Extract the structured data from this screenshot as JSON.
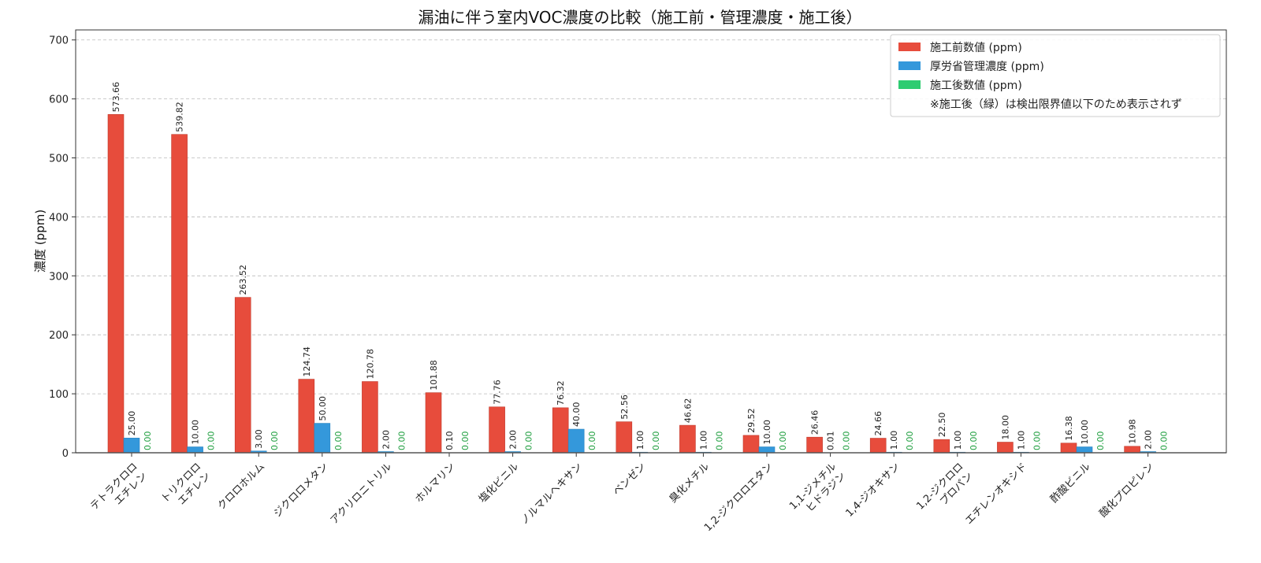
{
  "chart_data": {
    "type": "bar",
    "title": "漏油に伴う室内VOC濃度の比較（施工前・管理濃度・施工後）",
    "xlabel": "",
    "ylabel": "濃度 (ppm)",
    "ylim": [
      0,
      717
    ],
    "yticks": [
      "0",
      "100",
      "200",
      "300",
      "400",
      "500",
      "600",
      "700"
    ],
    "grid": true,
    "legend_position": "top-right",
    "categories": [
      "テトラクロロ\nエチレン",
      "トリクロロ\nエチレン",
      "クロロホルム",
      "ジクロロメタン",
      "アクリロニトリル",
      "ホルマリン",
      "塩化ビニル",
      "ノルマルヘキサン",
      "ベンゼン",
      "臭化メチル",
      "1,2-ジクロロエタン",
      "1,1-ジメチル\nヒドラジン",
      "1,4-ジオキサン",
      "1,2-ジクロロ\nプロパン",
      "エチレンオキシド",
      "酢酸ビニル",
      "酸化プロピレン"
    ],
    "series": [
      {
        "name": "施工前数値 (ppm)",
        "color": "#e74c3c",
        "values": [
          573.66,
          539.82,
          263.52,
          124.74,
          120.78,
          101.88,
          77.76,
          76.32,
          52.56,
          46.62,
          29.52,
          26.46,
          24.66,
          22.5,
          18.0,
          16.38,
          10.98
        ],
        "labels": [
          "573.66",
          "539.82",
          "263.52",
          "124.74",
          "120.78",
          "101.88",
          "77.76",
          "76.32",
          "52.56",
          "46.62",
          "29.52",
          "26.46",
          "24.66",
          "22.50",
          "18.00",
          "16.38",
          "10.98"
        ]
      },
      {
        "name": "厚労省管理濃度 (ppm)",
        "color": "#3498db",
        "values": [
          25,
          10,
          3,
          50,
          2,
          0.1,
          2,
          40,
          1,
          1,
          10,
          0.01,
          1,
          1,
          1,
          10,
          2
        ],
        "labels": [
          "25.00",
          "10.00",
          "3.00",
          "50.00",
          "2.00",
          "0.10",
          "2.00",
          "40.00",
          "1.00",
          "1.00",
          "10.00",
          "0.01",
          "1.00",
          "1.00",
          "1.00",
          "10.00",
          "2.00"
        ]
      },
      {
        "name": "施工後数値 (ppm)",
        "color": "#2ecc71",
        "values": [
          0,
          0,
          0,
          0,
          0,
          0,
          0,
          0,
          0,
          0,
          0,
          0,
          0,
          0,
          0,
          0,
          0
        ],
        "labels": [
          "0.00",
          "0.00",
          "0.00",
          "0.00",
          "0.00",
          "0.00",
          "0.00",
          "0.00",
          "0.00",
          "0.00",
          "0.00",
          "0.00",
          "0.00",
          "0.00",
          "0.00",
          "0.00",
          "0.00"
        ]
      }
    ],
    "legend_note": "※施工後（緑）は検出限界値以下のため表示されず"
  }
}
